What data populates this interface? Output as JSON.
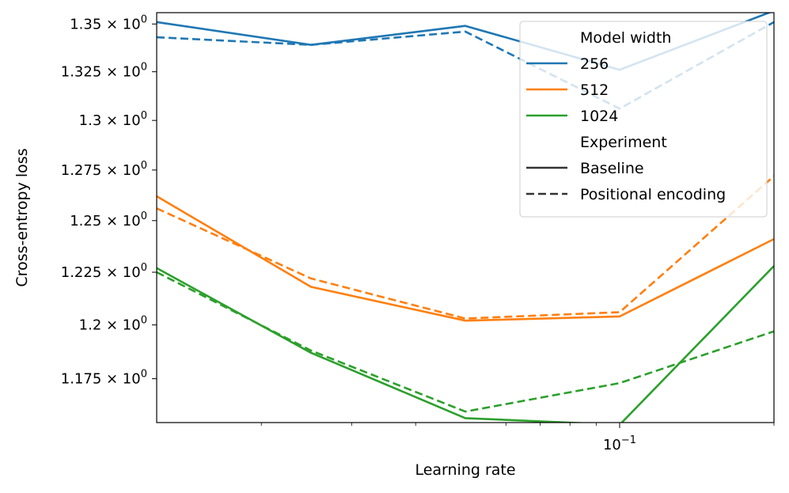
{
  "chart_data": {
    "type": "line",
    "xscale": "log",
    "yscale": "log",
    "xlabel": "Learning rate",
    "ylabel": "Cross-entropy loss",
    "xlim": [
      0.0125,
      0.2
    ],
    "ylim": [
      1.155,
      1.356
    ],
    "x": [
      0.0125,
      0.025,
      0.05,
      0.1,
      0.2
    ],
    "xticks": [
      {
        "value": 0.1,
        "label": "10",
        "exp": "−1"
      }
    ],
    "xminor": [
      0.02,
      0.03,
      0.04,
      0.06,
      0.07,
      0.08,
      0.09,
      0.2
    ],
    "yticks": [
      {
        "value": 1.35,
        "label": "1.35 × 10",
        "exp": "0"
      },
      {
        "value": 1.325,
        "label": "1.325 × 10",
        "exp": "0"
      },
      {
        "value": 1.3,
        "label": "1.3 × 10",
        "exp": "0"
      },
      {
        "value": 1.275,
        "label": "1.275 × 10",
        "exp": "0"
      },
      {
        "value": 1.25,
        "label": "1.25 × 10",
        "exp": "0"
      },
      {
        "value": 1.225,
        "label": "1.225 × 10",
        "exp": "0"
      },
      {
        "value": 1.2,
        "label": "1.2 × 10",
        "exp": "0"
      },
      {
        "value": 1.175,
        "label": "1.175 × 10",
        "exp": "0"
      }
    ],
    "series": [
      {
        "name": "256 Baseline",
        "width": "256",
        "experiment": "Baseline",
        "color": "#1f77b4",
        "dash": "solid",
        "values": [
          1.351,
          1.339,
          1.349,
          1.326,
          1.357
        ]
      },
      {
        "name": "256 Positional encoding",
        "width": "256",
        "experiment": "Positional encoding",
        "color": "#1f77b4",
        "dash": "dashed",
        "values": [
          1.343,
          1.339,
          1.346,
          1.306,
          1.351
        ]
      },
      {
        "name": "512 Baseline",
        "width": "512",
        "experiment": "Baseline",
        "color": "#ff7f0e",
        "dash": "solid",
        "values": [
          1.262,
          1.218,
          1.202,
          1.204,
          1.241
        ]
      },
      {
        "name": "512 Positional encoding",
        "width": "512",
        "experiment": "Positional encoding",
        "color": "#ff7f0e",
        "dash": "dashed",
        "values": [
          1.256,
          1.222,
          1.203,
          1.206,
          1.272
        ]
      },
      {
        "name": "1024 Baseline",
        "width": "1024",
        "experiment": "Baseline",
        "color": "#2ca02c",
        "dash": "solid",
        "values": [
          1.227,
          1.187,
          1.157,
          1.154,
          1.228
        ]
      },
      {
        "name": "1024 Positional encoding",
        "width": "1024",
        "experiment": "Positional encoding",
        "color": "#2ca02c",
        "dash": "dashed",
        "values": [
          1.225,
          1.188,
          1.16,
          1.173,
          1.197
        ]
      }
    ],
    "legend": {
      "placement": "top-right",
      "entries": [
        {
          "label": "Model width",
          "kind": "header"
        },
        {
          "label": "256",
          "kind": "line",
          "color": "#1f77b4",
          "dash": "solid"
        },
        {
          "label": "512",
          "kind": "line",
          "color": "#ff7f0e",
          "dash": "solid"
        },
        {
          "label": "1024",
          "kind": "line",
          "color": "#2ca02c",
          "dash": "solid"
        },
        {
          "label": "Experiment",
          "kind": "header"
        },
        {
          "label": "Baseline",
          "kind": "line",
          "color": "#333333",
          "dash": "solid"
        },
        {
          "label": "Positional encoding",
          "kind": "line",
          "color": "#333333",
          "dash": "dashed"
        }
      ]
    }
  }
}
